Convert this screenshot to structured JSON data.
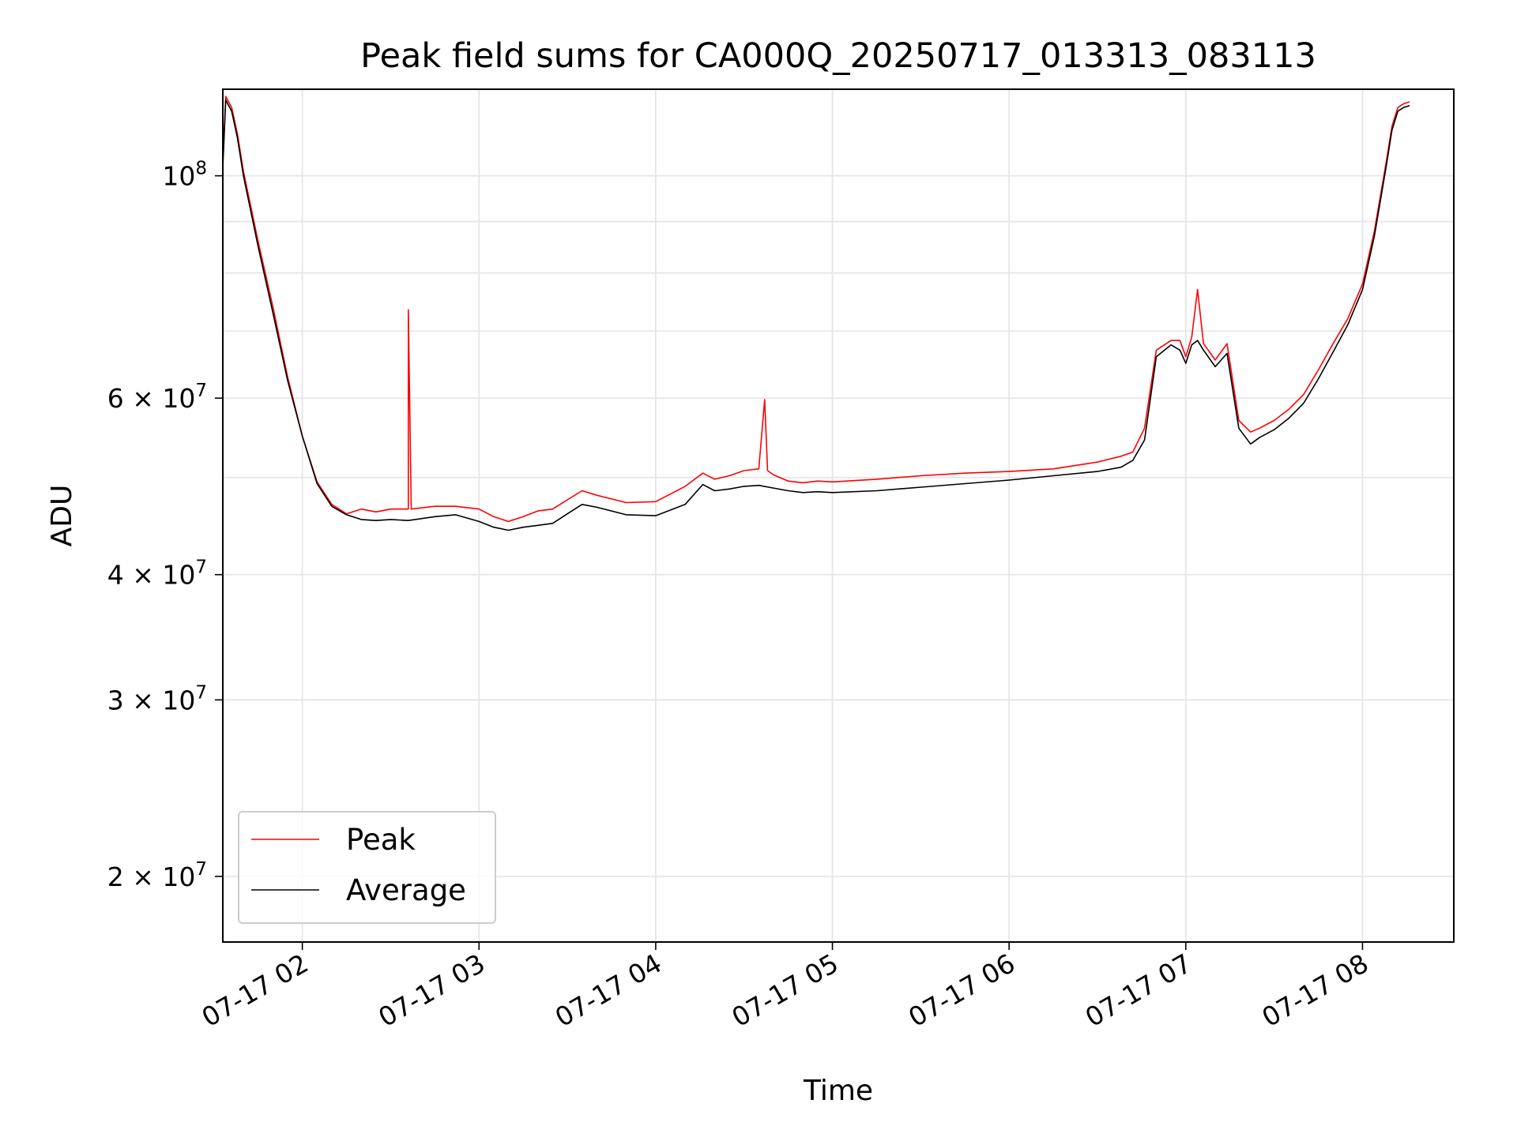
{
  "chart_data": {
    "type": "line",
    "title": "Peak field sums for CA000Q_20250717_013313_083113",
    "xlabel": "Time",
    "ylabel": "ADU",
    "yscale": "log",
    "grid": true,
    "legend_position": "lower-left",
    "xlim": [
      "2025-07-17 01:33",
      "2025-07-17 08:31"
    ],
    "ylim": [
      17200000,
      122000000
    ],
    "x_ticks": [
      {
        "value": "2025-07-17 02:00",
        "label": "07-17 02"
      },
      {
        "value": "2025-07-17 03:00",
        "label": "07-17 03"
      },
      {
        "value": "2025-07-17 04:00",
        "label": "07-17 04"
      },
      {
        "value": "2025-07-17 05:00",
        "label": "07-17 05"
      },
      {
        "value": "2025-07-17 06:00",
        "label": "07-17 06"
      },
      {
        "value": "2025-07-17 07:00",
        "label": "07-17 07"
      },
      {
        "value": "2025-07-17 08:00",
        "label": "07-17 08"
      }
    ],
    "y_ticks": [
      {
        "value": 100000000,
        "base": "10",
        "exp": "8",
        "coef": ""
      },
      {
        "value": 60000000,
        "base": "10",
        "exp": "7",
        "coef": "6 × "
      },
      {
        "value": 40000000,
        "base": "10",
        "exp": "7",
        "coef": "4 × "
      },
      {
        "value": 30000000,
        "base": "10",
        "exp": "7",
        "coef": "3 × "
      },
      {
        "value": 20000000,
        "base": "10",
        "exp": "7",
        "coef": "2 × "
      }
    ],
    "y_minor_grid": [
      50000000,
      70000000,
      80000000,
      90000000
    ],
    "series": [
      {
        "name": "Peak",
        "color": "#ff0000",
        "x": [
          "2025-07-17 01:33",
          "2025-07-17 01:34",
          "2025-07-17 01:36",
          "2025-07-17 01:38",
          "2025-07-17 01:40",
          "2025-07-17 01:45",
          "2025-07-17 01:50",
          "2025-07-17 01:55",
          "2025-07-17 02:00",
          "2025-07-17 02:05",
          "2025-07-17 02:10",
          "2025-07-17 02:15",
          "2025-07-17 02:20",
          "2025-07-17 02:25",
          "2025-07-17 02:30",
          "2025-07-17 02:36",
          "2025-07-17 02:36",
          "2025-07-17 02:37",
          "2025-07-17 02:45",
          "2025-07-17 02:52",
          "2025-07-17 03:00",
          "2025-07-17 03:05",
          "2025-07-17 03:10",
          "2025-07-17 03:15",
          "2025-07-17 03:20",
          "2025-07-17 03:25",
          "2025-07-17 03:30",
          "2025-07-17 03:35",
          "2025-07-17 03:40",
          "2025-07-17 03:50",
          "2025-07-17 04:00",
          "2025-07-17 04:10",
          "2025-07-17 04:16",
          "2025-07-17 04:20",
          "2025-07-17 04:25",
          "2025-07-17 04:30",
          "2025-07-17 04:35",
          "2025-07-17 04:37",
          "2025-07-17 04:38",
          "2025-07-17 04:40",
          "2025-07-17 04:45",
          "2025-07-17 04:50",
          "2025-07-17 04:55",
          "2025-07-17 05:00",
          "2025-07-17 05:15",
          "2025-07-17 05:30",
          "2025-07-17 05:45",
          "2025-07-17 06:00",
          "2025-07-17 06:15",
          "2025-07-17 06:30",
          "2025-07-17 06:38",
          "2025-07-17 06:42",
          "2025-07-17 06:46",
          "2025-07-17 06:50",
          "2025-07-17 06:55",
          "2025-07-17 06:58",
          "2025-07-17 07:00",
          "2025-07-17 07:02",
          "2025-07-17 07:04",
          "2025-07-17 07:06",
          "2025-07-17 07:10",
          "2025-07-17 07:14",
          "2025-07-17 07:18",
          "2025-07-17 07:22",
          "2025-07-17 07:25",
          "2025-07-17 07:30",
          "2025-07-17 07:35",
          "2025-07-17 07:40",
          "2025-07-17 07:45",
          "2025-07-17 07:50",
          "2025-07-17 07:55",
          "2025-07-17 08:00",
          "2025-07-17 08:04",
          "2025-07-17 08:08",
          "2025-07-17 08:10",
          "2025-07-17 08:12",
          "2025-07-17 08:14",
          "2025-07-17 08:16"
        ],
        "y": [
          103000000,
          120000000,
          117000000,
          110000000,
          101000000,
          86000000,
          74000000,
          63000000,
          55000000,
          49500000,
          47000000,
          46000000,
          46500000,
          46200000,
          46500000,
          46500000,
          73500000,
          46500000,
          46800000,
          46800000,
          46500000,
          45700000,
          45200000,
          45700000,
          46300000,
          46500000,
          47500000,
          48500000,
          48000000,
          47200000,
          47300000,
          49000000,
          50500000,
          49800000,
          50200000,
          50800000,
          51000000,
          59800000,
          50800000,
          50300000,
          49600000,
          49400000,
          49600000,
          49500000,
          49800000,
          50200000,
          50500000,
          50700000,
          51000000,
          51800000,
          52500000,
          53000000,
          56000000,
          67000000,
          68500000,
          68500000,
          66000000,
          69000000,
          77000000,
          68000000,
          65500000,
          68000000,
          57000000,
          55500000,
          56000000,
          57000000,
          58500000,
          60500000,
          64000000,
          68000000,
          72000000,
          78000000,
          88000000,
          103000000,
          112000000,
          117000000,
          118000000,
          118500000
        ]
      },
      {
        "name": "Average",
        "color": "#000000",
        "x": [
          "2025-07-17 01:33",
          "2025-07-17 01:34",
          "2025-07-17 01:36",
          "2025-07-17 01:38",
          "2025-07-17 01:40",
          "2025-07-17 01:45",
          "2025-07-17 01:50",
          "2025-07-17 01:55",
          "2025-07-17 02:00",
          "2025-07-17 02:05",
          "2025-07-17 02:10",
          "2025-07-17 02:15",
          "2025-07-17 02:20",
          "2025-07-17 02:25",
          "2025-07-17 02:30",
          "2025-07-17 02:36",
          "2025-07-17 02:45",
          "2025-07-17 02:52",
          "2025-07-17 03:00",
          "2025-07-17 03:05",
          "2025-07-17 03:10",
          "2025-07-17 03:15",
          "2025-07-17 03:20",
          "2025-07-17 03:25",
          "2025-07-17 03:30",
          "2025-07-17 03:35",
          "2025-07-17 03:40",
          "2025-07-17 03:50",
          "2025-07-17 04:00",
          "2025-07-17 04:10",
          "2025-07-17 04:16",
          "2025-07-17 04:20",
          "2025-07-17 04:25",
          "2025-07-17 04:30",
          "2025-07-17 04:35",
          "2025-07-17 04:40",
          "2025-07-17 04:45",
          "2025-07-17 04:50",
          "2025-07-17 04:55",
          "2025-07-17 05:00",
          "2025-07-17 05:15",
          "2025-07-17 05:30",
          "2025-07-17 05:45",
          "2025-07-17 06:00",
          "2025-07-17 06:15",
          "2025-07-17 06:30",
          "2025-07-17 06:38",
          "2025-07-17 06:42",
          "2025-07-17 06:46",
          "2025-07-17 06:50",
          "2025-07-17 06:55",
          "2025-07-17 06:58",
          "2025-07-17 07:00",
          "2025-07-17 07:02",
          "2025-07-17 07:04",
          "2025-07-17 07:06",
          "2025-07-17 07:10",
          "2025-07-17 07:14",
          "2025-07-17 07:18",
          "2025-07-17 07:22",
          "2025-07-17 07:25",
          "2025-07-17 07:30",
          "2025-07-17 07:35",
          "2025-07-17 07:40",
          "2025-07-17 07:45",
          "2025-07-17 07:50",
          "2025-07-17 07:55",
          "2025-07-17 08:00",
          "2025-07-17 08:04",
          "2025-07-17 08:08",
          "2025-07-17 08:10",
          "2025-07-17 08:12",
          "2025-07-17 08:14",
          "2025-07-17 08:16"
        ],
        "y": [
          102000000,
          119000000,
          116000000,
          109000000,
          100000000,
          85000000,
          73000000,
          62500000,
          55000000,
          49300000,
          46800000,
          45900000,
          45400000,
          45300000,
          45400000,
          45300000,
          45700000,
          45900000,
          45200000,
          44600000,
          44300000,
          44600000,
          44800000,
          45000000,
          46000000,
          47000000,
          46700000,
          45900000,
          45800000,
          47000000,
          49200000,
          48500000,
          48700000,
          49000000,
          49100000,
          48800000,
          48500000,
          48300000,
          48400000,
          48300000,
          48500000,
          48900000,
          49300000,
          49700000,
          50200000,
          50700000,
          51200000,
          52000000,
          54500000,
          66000000,
          67800000,
          67000000,
          65000000,
          67800000,
          68500000,
          67000000,
          64500000,
          66500000,
          56000000,
          54000000,
          54800000,
          55800000,
          57300000,
          59300000,
          62700000,
          66700000,
          71000000,
          77000000,
          87000000,
          102000000,
          111000000,
          116000000,
          117000000,
          117500000
        ]
      }
    ]
  }
}
